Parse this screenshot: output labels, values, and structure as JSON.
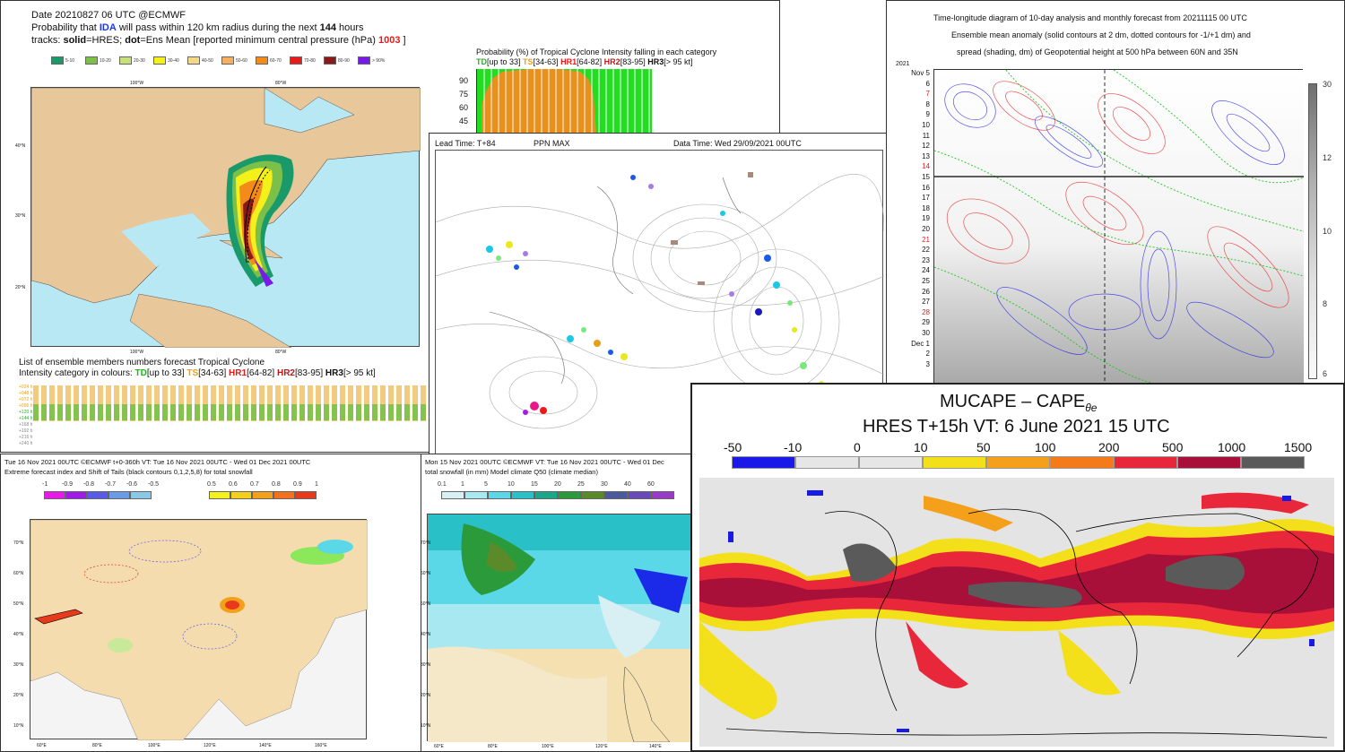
{
  "cyclone": {
    "line1": "Date 20210827 06 UTC   @ECMWF",
    "line2_a": "Probability that ",
    "line2_name": "IDA",
    "line2_b": " will pass within 120 km radius during the next ",
    "line2_hours": "144",
    "line2_c": " hours",
    "line3_a": "tracks: ",
    "line3_solid": "solid",
    "line3_b": "=HRES; ",
    "line3_dot": "dot",
    "line3_c": "=Ens Mean [reported minimum central pressure (hPa) ",
    "line3_pressure": "1003",
    "line3_d": " ]",
    "legend": [
      "5-10",
      "10-20",
      "20-30",
      "30-40",
      "40-50",
      "50-60",
      "60-70",
      "70-80",
      "80-90",
      "> 90%"
    ],
    "legend_colors": [
      "#1a9a6a",
      "#7cc04a",
      "#c8e07c",
      "#f4f01a",
      "#f4d88a",
      "#f4b060",
      "#f48a1a",
      "#e81a1a",
      "#8a1a1a",
      "#7a1ae8"
    ],
    "lon_top": [
      "100°W",
      "80°W"
    ],
    "lon_bottom": [
      "100°W",
      "80°W"
    ],
    "lat": [
      "40°N",
      "30°N",
      "20°N"
    ],
    "list_title": "List of ensemble members numbers forecast Tropical Cyclone",
    "list_sub_a": "Intensity category in colours: ",
    "list_td": "TD",
    "list_td_r": "[up to 33]",
    "list_ts": "TS",
    "list_ts_r": "[34-63]",
    "list_hr1": "HR1",
    "list_hr1_r": "[64-82]",
    "list_hr2": "HR2",
    "list_hr2_r": "[83-95]",
    "list_hr3": "HR3",
    "list_hr3_r": "[> 95 kt]",
    "row_labels": [
      "+024 h",
      "+048 h",
      "+072 h",
      "+096 h",
      "+120 h",
      "+144 h",
      "+168 h",
      "+192 h",
      "+216 h",
      "+240 h"
    ]
  },
  "intensity": {
    "title": "Probability (%) of Tropical Cyclone Intensity falling in each category",
    "td": "TD",
    "td_r": "[up to 33]",
    "ts": "TS",
    "ts_r": "[34-63]",
    "hr1": "HR1",
    "hr1_r": "[64-82]",
    "hr2": "HR2",
    "hr2_r": "[83-95]",
    "hr3": "HR3",
    "hr3_r": "[> 95 kt]",
    "yticks": [
      "90",
      "75",
      "60",
      "45"
    ]
  },
  "ppn": {
    "lead": "Lead Time: T+84",
    "param": "PPN MAX",
    "datatime": "Data Time: Wed 29/09/2021 00UTC"
  },
  "hovmoller": {
    "title1": "Time-longitude diagram of 10-day analysis and monthly forecast from 20211115 00 UTC",
    "title2": "Ensemble mean anomaly (solid contours at 2 dm, dotted contours for -1/+1 dm) and",
    "title3": "spread (shading, dm) of Geopotential height at 500 hPa between 60N and 35N",
    "year": "2021",
    "days": [
      "Nov 5",
      "6",
      "7",
      "8",
      "9",
      "10",
      "11",
      "12",
      "13",
      "14",
      "15",
      "16",
      "17",
      "18",
      "19",
      "20",
      "21",
      "22",
      "23",
      "24",
      "25",
      "26",
      "27",
      "28",
      "29",
      "30",
      "Dec 1",
      "2",
      "3"
    ],
    "red_days": [
      "7",
      "14",
      "21",
      "28"
    ],
    "scale": [
      "30",
      "12",
      "10",
      "8",
      "6"
    ]
  },
  "efi": {
    "line1": "Tue 16 Nov 2021 00UTC ©ECMWF t+0-360h  VT: Tue 16 Nov 2021 00UTC - Wed 01 Dec 2021 00UTC",
    "line2": "Extreme forecast index and Shift of Tails (black contours 0,1,2,5,8) for total snowfall",
    "neg_labels": [
      "-1",
      "-0.9",
      "-0.8",
      "-0.7",
      "-0.6",
      "-0.5"
    ],
    "neg_colors": [
      "#e81ae8",
      "#a01ae8",
      "#5a5ae8",
      "#6a9ae8",
      "#8ac8e8",
      "#c0e8f4"
    ],
    "pos_labels": [
      "0.5",
      "0.6",
      "0.7",
      "0.8",
      "0.9",
      "1"
    ],
    "pos_colors": [
      "#f4f01a",
      "#f4d01a",
      "#f4a01a",
      "#f4701a",
      "#e83a1a",
      "#e81a1a"
    ],
    "lon": [
      "60°E",
      "80°E",
      "100°E",
      "120°E",
      "140°E",
      "160°E"
    ],
    "lat": [
      "70°N",
      "60°N",
      "50°N",
      "40°N",
      "30°N",
      "20°N",
      "10°N"
    ]
  },
  "snow": {
    "line1": "Mon 15 Nov 2021 00UTC ©ECMWF VT: Tue 16 Nov 2021 00UTC - Wed 01 Dec",
    "line2": "total snowfall (in mm)  Model climate Q50 (climate median)",
    "labels": [
      "0.1",
      "1",
      "5",
      "10",
      "15",
      "20",
      "25",
      "30",
      "40",
      "60"
    ],
    "colors": [
      "#d8f0f4",
      "#a8e8f0",
      "#5ad8e8",
      "#2ac0c8",
      "#1aa88a",
      "#2a9a3a",
      "#5a8a2a",
      "#4a5a9a",
      "#6a4ab8",
      "#9a3ac8"
    ],
    "lat": [
      "70°N",
      "60°N",
      "50°N",
      "40°N",
      "30°N",
      "20°N",
      "10°N"
    ],
    "lon": [
      "60°E",
      "80°E",
      "100°E",
      "120°E",
      "140°E"
    ]
  },
  "cape": {
    "title1": "MUCAPE – CAPE",
    "title1_sub": "θe",
    "title2": "HRES T+15h VT: 6 June 2021 15 UTC",
    "labels": [
      "-50",
      "-10",
      "0",
      "10",
      "50",
      "100",
      "200",
      "500",
      "1000",
      "1500"
    ],
    "colors": [
      "#1a1ae8",
      "#e6e6e6",
      "#e6e6e6",
      "#f4e01a",
      "#f4a01a",
      "#f47a1a",
      "#e8283a",
      "#a8103a",
      "#5a5a5a"
    ]
  }
}
